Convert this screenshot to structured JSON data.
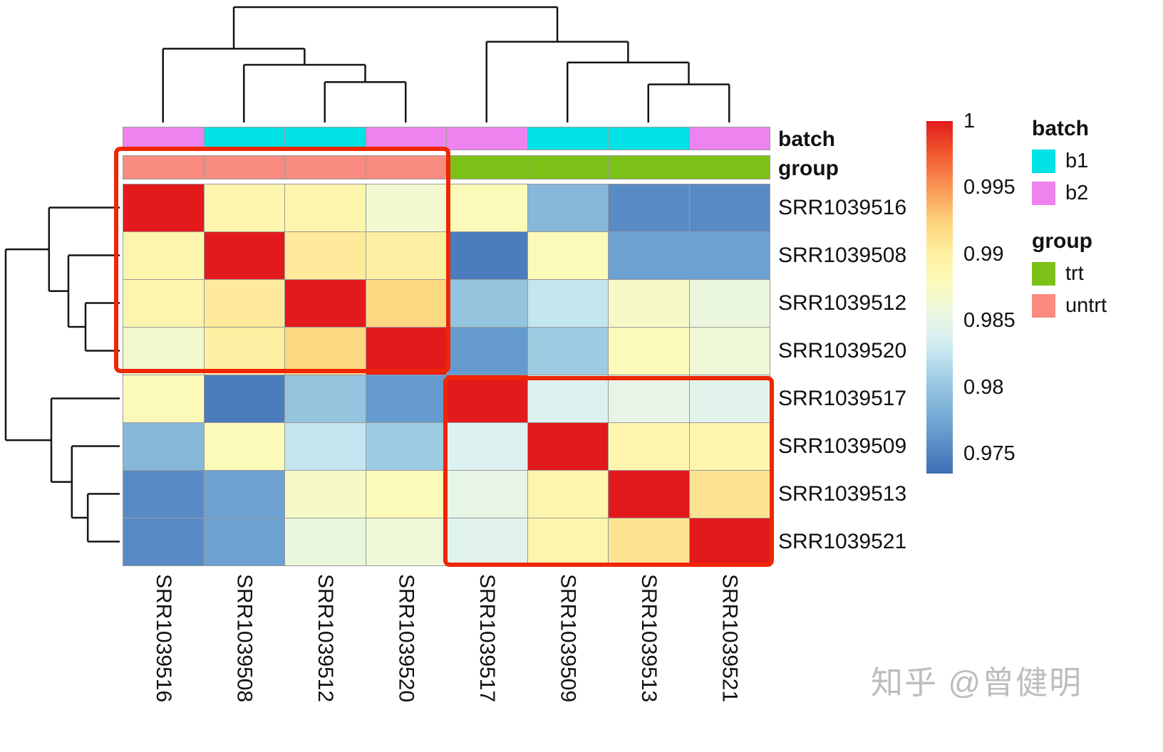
{
  "watermark": {
    "text": "知乎 @曾健明"
  },
  "chart_data": {
    "type": "heatmap",
    "title": "",
    "samples": [
      "SRR1039516",
      "SRR1039508",
      "SRR1039512",
      "SRR1039520",
      "SRR1039517",
      "SRR1039509",
      "SRR1039513",
      "SRR1039521"
    ],
    "matrix": [
      [
        1,
        0.989,
        0.989,
        0.9865,
        0.988,
        0.979,
        0.9755,
        0.9755
      ],
      [
        0.989,
        1,
        0.9905,
        0.99,
        0.9745,
        0.988,
        0.977,
        0.977
      ],
      [
        0.989,
        0.9905,
        1,
        0.992,
        0.98,
        0.9825,
        0.987,
        0.9855
      ],
      [
        0.9865,
        0.99,
        0.992,
        1,
        0.9765,
        0.9805,
        0.988,
        0.986
      ],
      [
        0.988,
        0.9745,
        0.98,
        0.9765,
        1,
        0.984,
        0.985,
        0.9845
      ],
      [
        0.979,
        0.988,
        0.9825,
        0.9805,
        0.984,
        1,
        0.989,
        0.989
      ],
      [
        0.9755,
        0.977,
        0.987,
        0.988,
        0.985,
        0.989,
        1,
        0.991
      ],
      [
        0.9755,
        0.977,
        0.9855,
        0.986,
        0.9845,
        0.989,
        0.991,
        1
      ]
    ],
    "value_range": [
      0.9735,
      1.0
    ],
    "color_stops": [
      [
        0.9735,
        "#3e6db3"
      ],
      [
        0.977,
        "#6ca1d2"
      ],
      [
        0.98,
        "#94c4de"
      ],
      [
        0.9825,
        "#c3e5ef"
      ],
      [
        0.984,
        "#def1f1"
      ],
      [
        0.986,
        "#eef8d8"
      ],
      [
        0.988,
        "#fcfab8"
      ],
      [
        0.99,
        "#fef0a2"
      ],
      [
        0.9925,
        "#fdd27a"
      ],
      [
        0.995,
        "#fa9656"
      ],
      [
        0.9975,
        "#f1592f"
      ],
      [
        1.0,
        "#e31a1c"
      ]
    ],
    "annotations": {
      "batch_label": "batch",
      "group_label": "group",
      "batch": [
        "b2",
        "b1",
        "b1",
        "b2",
        "b2",
        "b1",
        "b1",
        "b2"
      ],
      "group": [
        "untrt",
        "untrt",
        "untrt",
        "untrt",
        "trt",
        "trt",
        "trt",
        "trt"
      ],
      "batch_colors": {
        "b1": "#00e2e6",
        "b2": "#ee82ee"
      },
      "group_colors": {
        "trt": "#7cc117",
        "untrt": "#f98b80"
      }
    },
    "legend": {
      "batch": {
        "title": "batch",
        "items": [
          {
            "label": "b1",
            "color": "#00e2e6"
          },
          {
            "label": "b2",
            "color": "#ee82ee"
          }
        ]
      },
      "group": {
        "title": "group",
        "items": [
          {
            "label": "trt",
            "color": "#7cc117"
          },
          {
            "label": "untrt",
            "color": "#f98b80"
          }
        ]
      }
    },
    "colorbar_ticks": [
      {
        "label": "1",
        "value": 1.0
      },
      {
        "label": "0.995",
        "value": 0.995
      },
      {
        "label": "0.99",
        "value": 0.99
      },
      {
        "label": "0.985",
        "value": 0.985
      },
      {
        "label": "0.98",
        "value": 0.98
      },
      {
        "label": "0.975",
        "value": 0.975
      }
    ],
    "col_dendrogram": {
      "h": 1,
      "c": [
        {
          "h": 0.64,
          "c": [
            {
              "l": 0
            },
            {
              "h": 0.5,
              "c": [
                {
                  "l": 1
                },
                {
                  "h": 0.35,
                  "c": [
                    {
                      "l": 2
                    },
                    {
                      "l": 3
                    }
                  ]
                }
              ]
            }
          ]
        },
        {
          "h": 0.7,
          "c": [
            {
              "l": 4
            },
            {
              "h": 0.52,
              "c": [
                {
                  "l": 5
                },
                {
                  "h": 0.33,
                  "c": [
                    {
                      "l": 6
                    },
                    {
                      "l": 7
                    }
                  ]
                }
              ]
            }
          ]
        }
      ]
    },
    "row_dendrogram": {
      "h": 1,
      "c": [
        {
          "h": 0.62,
          "c": [
            {
              "l": 0
            },
            {
              "h": 0.45,
              "c": [
                {
                  "l": 1
                },
                {
                  "h": 0.3,
                  "c": [
                    {
                      "l": 2
                    },
                    {
                      "l": 3
                    }
                  ]
                }
              ]
            }
          ]
        },
        {
          "h": 0.6,
          "c": [
            {
              "l": 4
            },
            {
              "h": 0.42,
              "c": [
                {
                  "l": 5
                },
                {
                  "h": 0.28,
                  "c": [
                    {
                      "l": 6
                    },
                    {
                      "l": 7
                    }
                  ]
                }
              ]
            }
          ]
        }
      ]
    },
    "highlight_boxes": [
      {
        "name": "untrt-block",
        "rows": [
          0,
          3
        ],
        "cols": [
          0,
          3
        ]
      },
      {
        "name": "trt-block",
        "rows": [
          4,
          7
        ],
        "cols": [
          4,
          7
        ]
      }
    ]
  }
}
